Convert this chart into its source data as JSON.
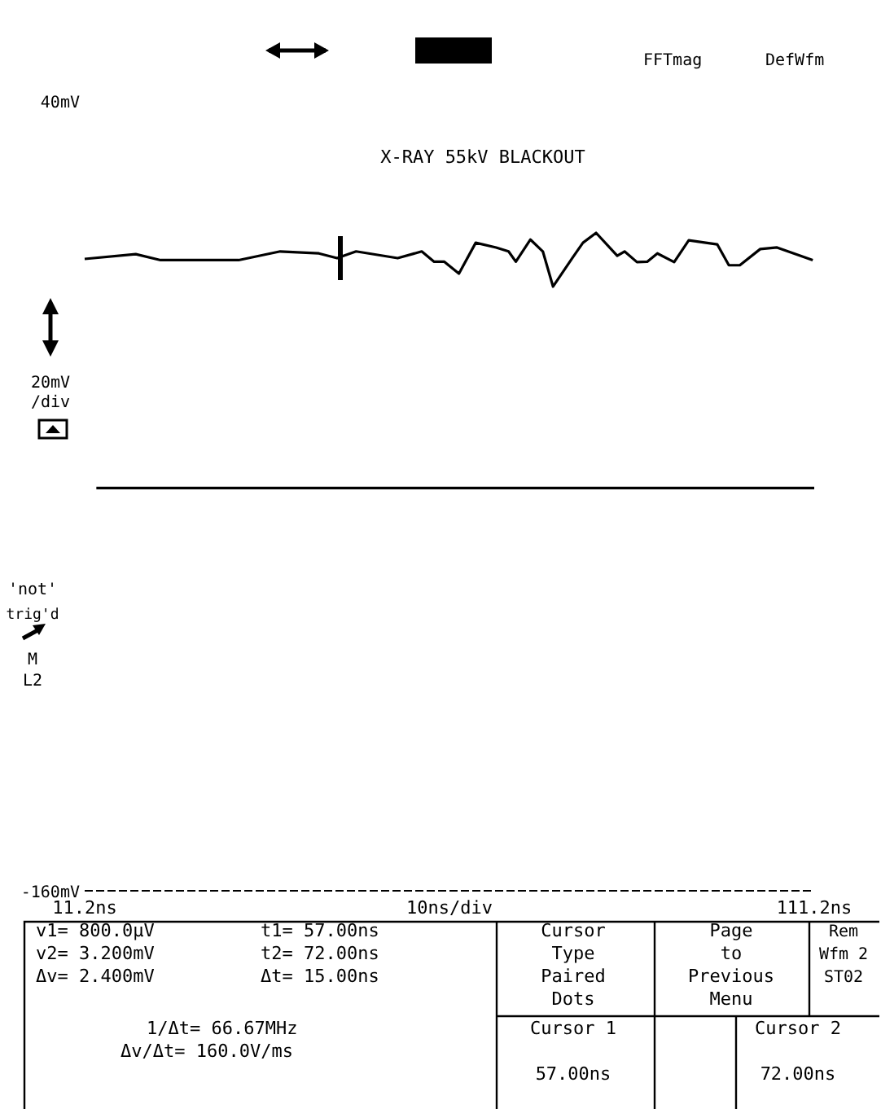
{
  "chart_data": {
    "type": "line",
    "title": "X-RAY 55kV BLACKOUT",
    "xlabel": "10ns/div",
    "ylabel": "20mV/div",
    "xlim": [
      11.2,
      111.2
    ],
    "xticks": [
      {
        "value": 11.2,
        "label": "11.2ns"
      },
      {
        "value": 111.2,
        "label": "111.2ns"
      }
    ],
    "ylim": [
      -160,
      40
    ],
    "yticks": [
      {
        "value": -160,
        "label": "-160mV"
      },
      {
        "value": 40,
        "label": "40mV"
      }
    ],
    "grid": false,
    "marker": "none",
    "ref_lines": [
      {
        "axis": "y",
        "value": -160,
        "line_style": "dashed",
        "color": "#000000"
      }
    ],
    "line_style": "solid",
    "series": [
      {
        "color": "#000000",
        "x": [
          11.2,
          18.2,
          21.6,
          32.3,
          38.0,
          43.3,
          45.8,
          48.4,
          54.1,
          57.4,
          59.1,
          60.5,
          62.5,
          64.8,
          67.6,
          69.3,
          70.3,
          72.3,
          74.0,
          75.4,
          78.1,
          79.5,
          81.3,
          84.2,
          85.2,
          86.9,
          88.3,
          89.7,
          92.0,
          94.0,
          97.9,
          99.5,
          101.0,
          103.8,
          106.1,
          111.0
        ],
        "values": [
          0,
          1.2,
          -0.3,
          -0.3,
          1.9,
          1.4,
          0.2,
          1.9,
          0.2,
          1.9,
          -0.7,
          -0.7,
          -3.7,
          4.1,
          2.9,
          1.9,
          -0.7,
          4.9,
          1.9,
          -7.0,
          0.4,
          4.1,
          6.6,
          0.8,
          1.9,
          -0.8,
          -0.7,
          1.4,
          -0.8,
          4.7,
          3.7,
          -1.6,
          -1.6,
          2.5,
          2.9,
          -0.3
        ]
      },
      {
        "color": "#000000",
        "x": [
          12.8,
          111.2
        ],
        "values": [
          -58,
          -58
        ]
      }
    ],
    "annotations": [
      "FFTmag",
      "DefWfm",
      "'not'",
      "trig'd",
      "M",
      "L2",
      "v1= 800.0µV",
      "v2= 3.200mV",
      "Δv= 2.400mV",
      "t1= 57.00ns",
      "t2= 72.00ns",
      "Δt= 15.00ns",
      "1/Δt= 66.67MHz",
      "Δv/Δt= 160.0V/ms",
      "Cursor",
      "Type",
      "Paired",
      "Dots",
      "Page",
      "to",
      "Previous",
      "Menu",
      "Rem",
      "Wfm 2",
      "ST02",
      "Cursor 1",
      "57.00ns",
      "Cursor 2",
      "72.00ns"
    ]
  }
}
